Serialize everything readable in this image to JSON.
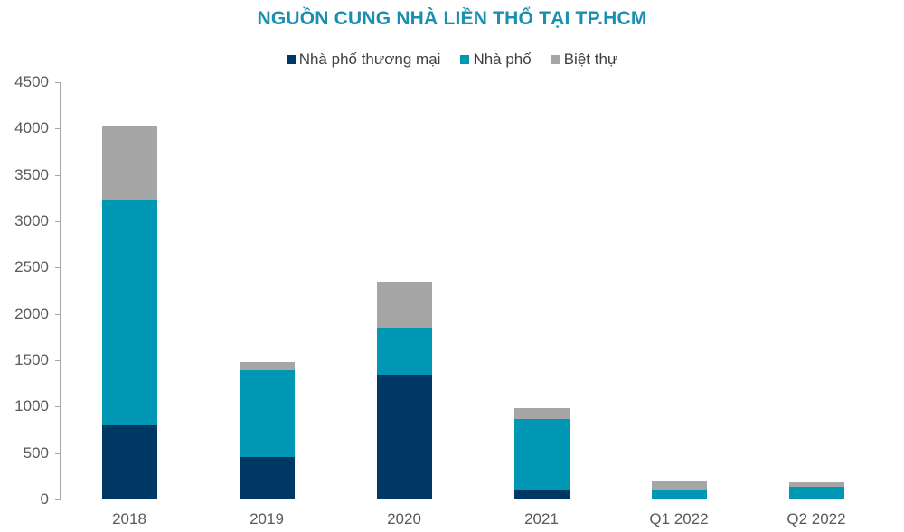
{
  "chart_data": {
    "type": "bar",
    "stacked": true,
    "title": "NGUỒN CUNG NHÀ LIỀN THỔ TẠI TP.HCM",
    "xlabel": "",
    "ylabel": "",
    "ylim": [
      0,
      4500
    ],
    "yticks": [
      0,
      500,
      1000,
      1500,
      2000,
      2500,
      3000,
      3500,
      4000,
      4500
    ],
    "grid": false,
    "legend_position": "top",
    "categories": [
      "2018",
      "2019",
      "2020",
      "2021",
      "Q1 2022",
      "Q2 2022"
    ],
    "series": [
      {
        "name": "Nhà phố thương mại",
        "color": "#003865",
        "values": [
          800,
          460,
          1340,
          110,
          0,
          0
        ]
      },
      {
        "name": "Nhà phố",
        "color": "#0097b5",
        "values": [
          2430,
          930,
          510,
          760,
          110,
          140
        ]
      },
      {
        "name": "Biệt thự",
        "color": "#a6a6a6",
        "values": [
          790,
          90,
          500,
          110,
          90,
          50
        ]
      }
    ]
  }
}
